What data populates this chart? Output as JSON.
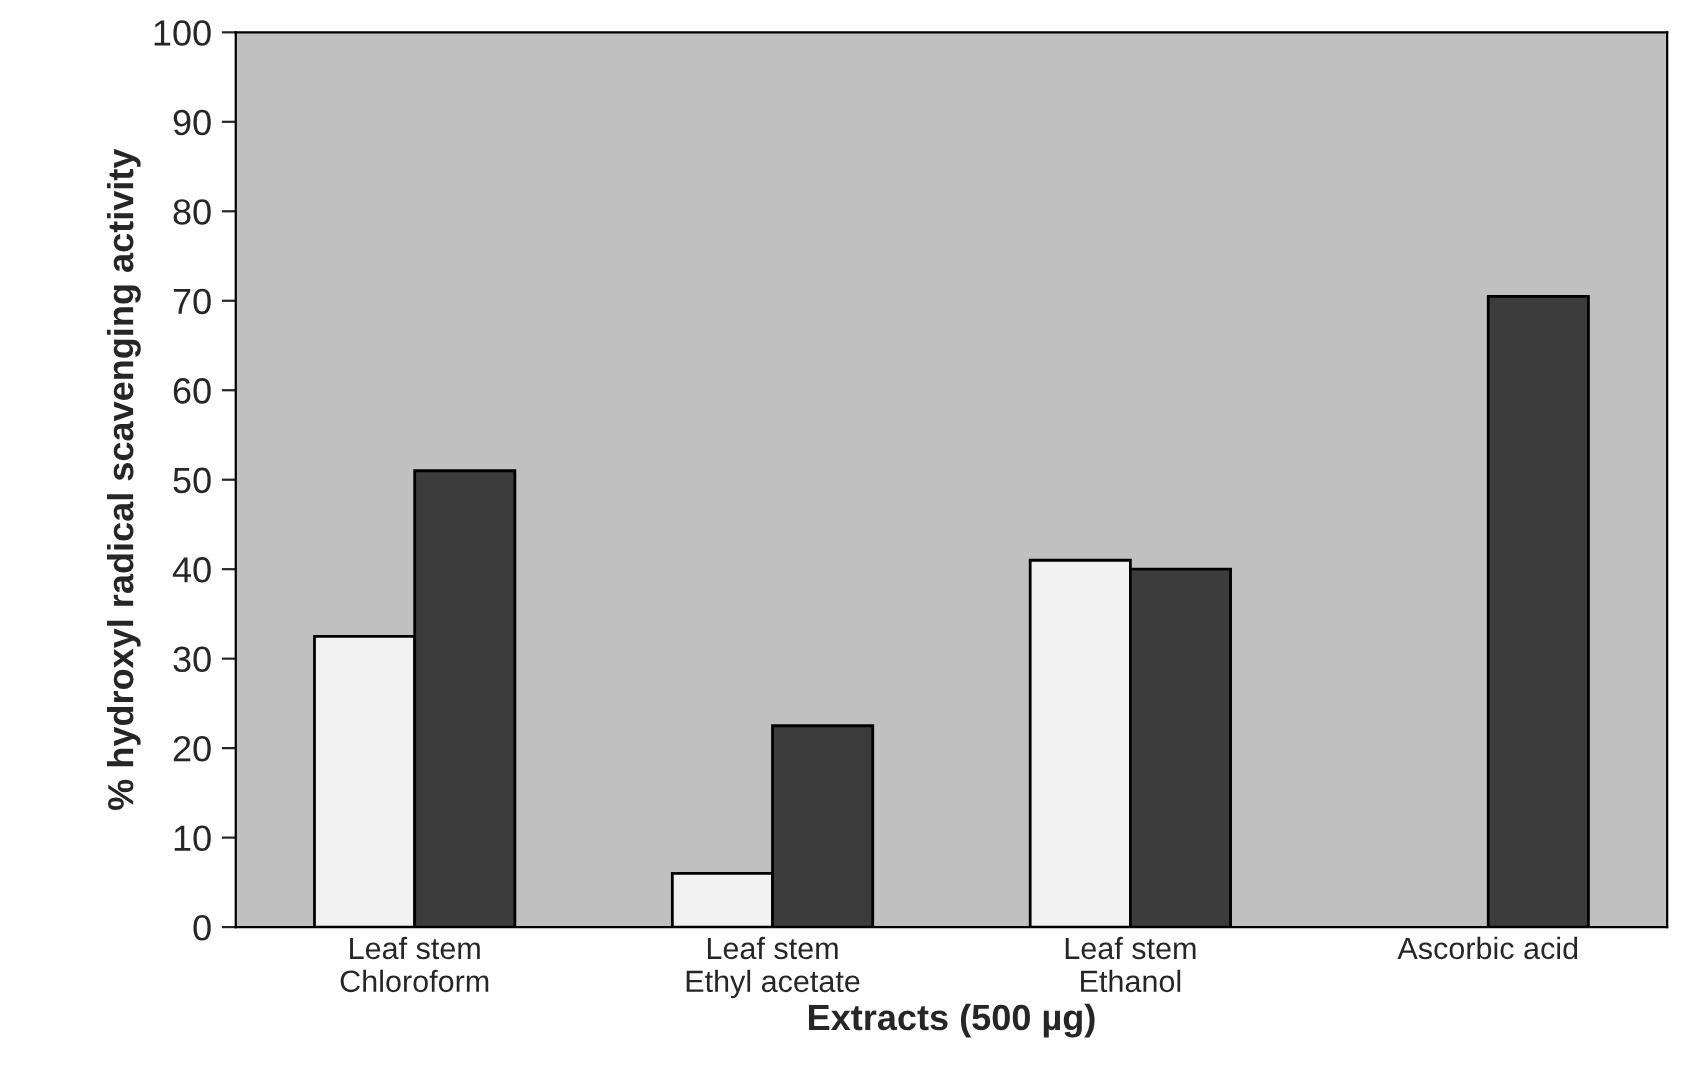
{
  "chart_data": {
    "type": "bar",
    "xlabel": "Extracts (500 µg)",
    "ylabel": "% hydroxyl radical scavenging activity",
    "categories": [
      "Leaf stem\nChloroform",
      "Leaf stem\nEthyl acetate",
      "Leaf stem\nEthanol",
      "Ascorbic acid"
    ],
    "series": [
      {
        "color": "#f2f2f2",
        "values": [
          32.5,
          6,
          41,
          null
        ]
      },
      {
        "color": "#3c3c3c",
        "values": [
          51,
          22.5,
          40,
          70.5
        ]
      }
    ],
    "ylim": [
      0,
      100
    ],
    "yticks": [
      0,
      10,
      20,
      30,
      40,
      50,
      60,
      70,
      80,
      90,
      100
    ],
    "grid": false,
    "legend": false
  }
}
